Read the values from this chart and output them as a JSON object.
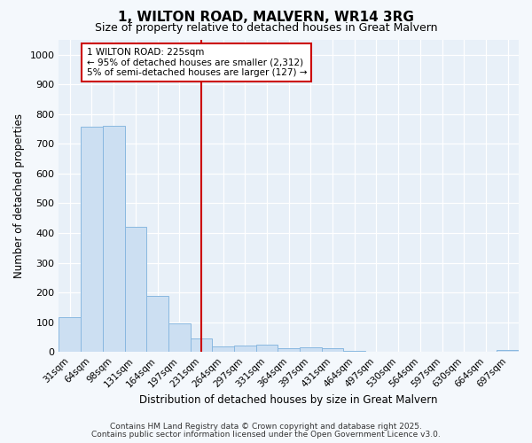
{
  "title": "1, WILTON ROAD, MALVERN, WR14 3RG",
  "subtitle": "Size of property relative to detached houses in Great Malvern",
  "xlabel": "Distribution of detached houses by size in Great Malvern",
  "ylabel": "Number of detached properties",
  "categories": [
    "31sqm",
    "64sqm",
    "98sqm",
    "131sqm",
    "164sqm",
    "197sqm",
    "231sqm",
    "264sqm",
    "297sqm",
    "331sqm",
    "364sqm",
    "397sqm",
    "431sqm",
    "464sqm",
    "497sqm",
    "530sqm",
    "564sqm",
    "597sqm",
    "630sqm",
    "664sqm",
    "697sqm"
  ],
  "values": [
    118,
    758,
    762,
    420,
    188,
    97,
    46,
    20,
    22,
    25,
    12,
    15,
    14,
    5,
    0,
    0,
    0,
    0,
    0,
    0,
    8
  ],
  "bar_color": "#ccdff2",
  "bar_edge_color": "#89b8e0",
  "fig_bg_color": "#f4f8fc",
  "plot_bg_color": "#e8f0f8",
  "grid_color": "#ffffff",
  "vline_x": 6.0,
  "vline_color": "#cc0000",
  "annotation_line1": "1 WILTON ROAD: 225sqm",
  "annotation_line2": "← 95% of detached houses are smaller (2,312)",
  "annotation_line3": "5% of semi-detached houses are larger (127) →",
  "annotation_box_facecolor": "#ffffff",
  "annotation_box_edgecolor": "#cc0000",
  "ylim": [
    0,
    1050
  ],
  "yticks": [
    0,
    100,
    200,
    300,
    400,
    500,
    600,
    700,
    800,
    900,
    1000
  ],
  "title_fontsize": 11,
  "subtitle_fontsize": 9,
  "xlabel_fontsize": 8.5,
  "ylabel_fontsize": 8.5,
  "tick_fontsize": 7.5,
  "footer1": "Contains HM Land Registry data © Crown copyright and database right 2025.",
  "footer2": "Contains public sector information licensed under the Open Government Licence v3.0.",
  "footer_fontsize": 6.5
}
